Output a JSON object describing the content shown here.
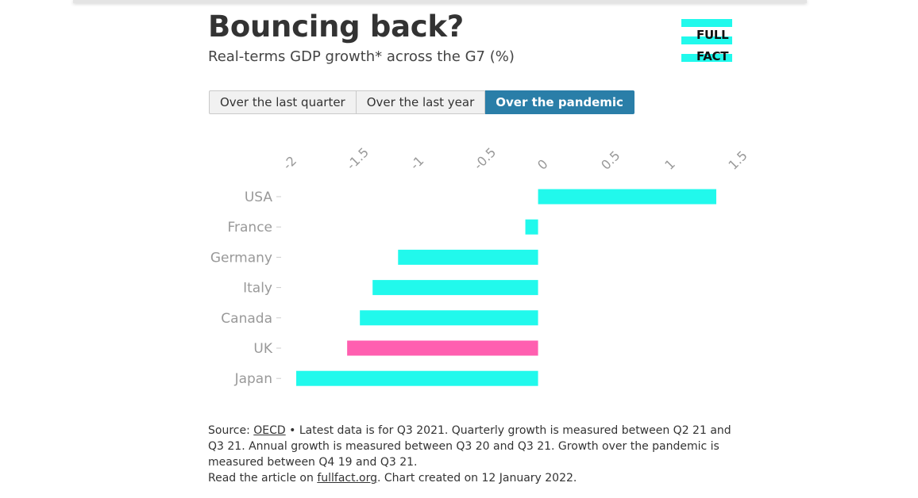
{
  "header": {
    "title": "Bouncing back?",
    "subtitle": "Real-terms GDP growth* across the G7 (%)"
  },
  "logo": {
    "line1": "FULL",
    "line2": "FACT",
    "color": "#21f9ec"
  },
  "tabs": [
    {
      "label": "Over the last quarter",
      "active": false
    },
    {
      "label": "Over the last year",
      "active": false
    },
    {
      "label": "Over the pandemic",
      "active": true
    }
  ],
  "colors": {
    "bar": "#21f9ec",
    "highlight": "#ff5fb0",
    "tab_active": "#2a7ea8"
  },
  "chart_data": {
    "type": "bar",
    "orientation": "horizontal",
    "categories": [
      "USA",
      "France",
      "Germany",
      "Italy",
      "Canada",
      "UK",
      "Japan"
    ],
    "values": [
      1.4,
      -0.1,
      -1.1,
      -1.3,
      -1.4,
      -1.5,
      -1.9
    ],
    "highlight": [
      "UK"
    ],
    "xlim": [
      -2,
      1.5
    ],
    "xticks": [
      -2,
      -1.5,
      -1,
      -0.5,
      0,
      0.5,
      1,
      1.5
    ],
    "xtick_labels": [
      "-2",
      "-1.5",
      "-1",
      "-0.5",
      "0",
      "0.5",
      "1",
      "1.5"
    ],
    "x_axis_position": "top",
    "grid": false,
    "legend": "none"
  },
  "footer": {
    "source_prefix": "Source: ",
    "source_link": "OECD",
    "notes": " • Latest data is for Q3 2021. Quarterly growth is measured between Q2 21 and Q3 21. Annual growth is measured between Q3 20 and Q3 21. Growth over the pandemic is measured between Q4 19 and Q3 21.",
    "read_prefix": "Read the article on ",
    "read_link": "fullfact.org",
    "read_suffix": ". Chart created on 12 January 2022."
  }
}
